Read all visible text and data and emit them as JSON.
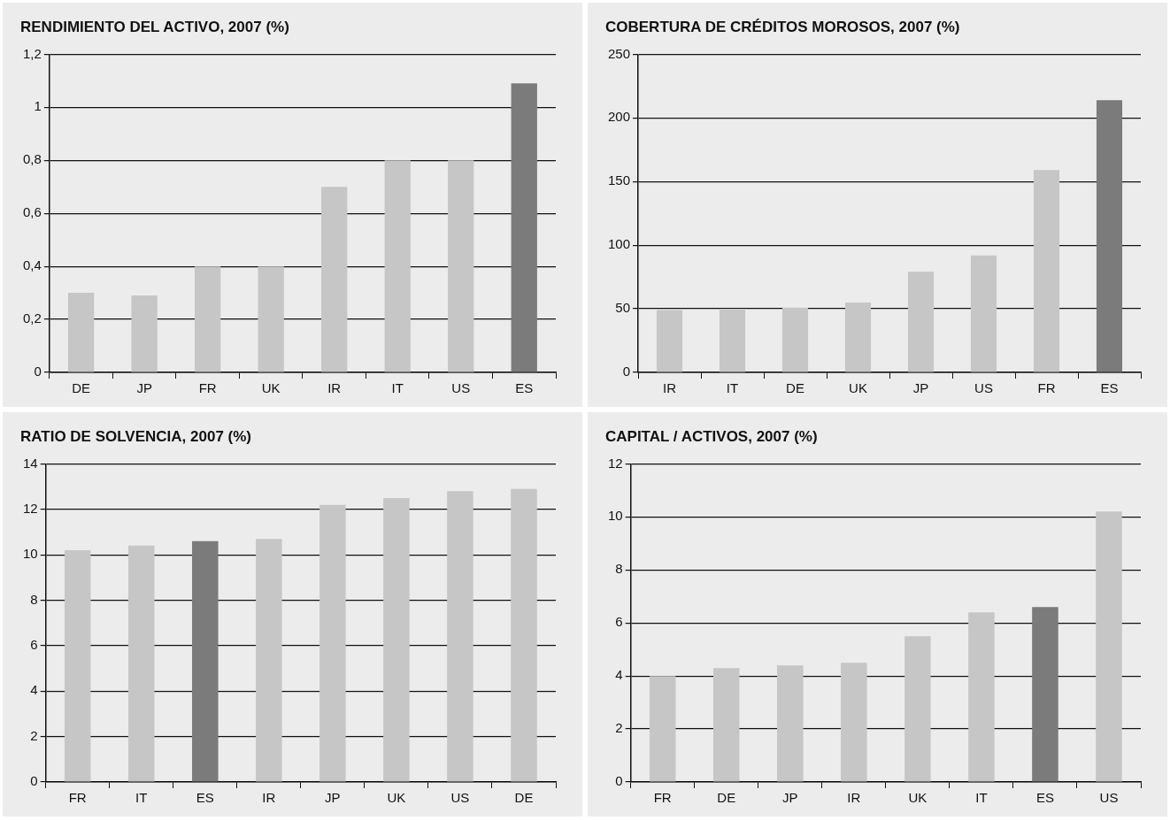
{
  "chart_data": [
    {
      "type": "bar",
      "title": "RENDIMIENTO DEL ACTIVO, 2007 (%)",
      "categories": [
        "DE",
        "JP",
        "FR",
        "UK",
        "IR",
        "IT",
        "US",
        "ES"
      ],
      "values": [
        0.3,
        0.29,
        0.4,
        0.4,
        0.7,
        0.8,
        0.8,
        1.09
      ],
      "colors": [
        "#c6c6c6",
        "#c6c6c6",
        "#c6c6c6",
        "#c6c6c6",
        "#c6c6c6",
        "#c6c6c6",
        "#c6c6c6",
        "#7b7b7b"
      ],
      "ylim": [
        0,
        1.2
      ],
      "yticks": [
        0,
        {
          "value": 0.2,
          "label": "0,2"
        },
        {
          "value": 0.4,
          "label": "0,4"
        },
        {
          "value": 0.6,
          "label": "0,6"
        },
        {
          "value": 0.8,
          "label": "0,8"
        },
        1,
        {
          "value": 1.2,
          "label": "1,2"
        }
      ],
      "grid": "y"
    },
    {
      "type": "bar",
      "title": "COBERTURA DE CRÉDITOS MOROSOS, 2007 (%)",
      "categories": [
        "IR",
        "IT",
        "DE",
        "UK",
        "JP",
        "US",
        "FR",
        "ES"
      ],
      "values": [
        49,
        50,
        51,
        55,
        79,
        92,
        159,
        214
      ],
      "colors": [
        "#c6c6c6",
        "#c6c6c6",
        "#c6c6c6",
        "#c6c6c6",
        "#c6c6c6",
        "#c6c6c6",
        "#c6c6c6",
        "#7b7b7b"
      ],
      "ylim": [
        0,
        250
      ],
      "yticks": [
        0,
        50,
        100,
        150,
        200,
        250
      ],
      "grid": "y"
    },
    {
      "type": "bar",
      "title": "RATIO DE SOLVENCIA, 2007 (%)",
      "categories": [
        "FR",
        "IT",
        "ES",
        "IR",
        "JP",
        "UK",
        "US",
        "DE"
      ],
      "values": [
        10.2,
        10.4,
        10.6,
        10.7,
        12.2,
        12.5,
        12.8,
        12.9
      ],
      "colors": [
        "#c6c6c6",
        "#c6c6c6",
        "#7b7b7b",
        "#c6c6c6",
        "#c6c6c6",
        "#c6c6c6",
        "#c6c6c6",
        "#c6c6c6"
      ],
      "ylim": [
        0,
        14
      ],
      "yticks": [
        0,
        2,
        4,
        6,
        8,
        10,
        12,
        14
      ],
      "grid": "y"
    },
    {
      "type": "bar",
      "title": "CAPITAL / ACTIVOS, 2007 (%)",
      "categories": [
        "FR",
        "DE",
        "JP",
        "IR",
        "UK",
        "IT",
        "ES",
        "US"
      ],
      "values": [
        4.0,
        4.3,
        4.4,
        4.5,
        5.5,
        6.4,
        6.6,
        10.2
      ],
      "colors": [
        "#c6c6c6",
        "#c6c6c6",
        "#c6c6c6",
        "#c6c6c6",
        "#c6c6c6",
        "#c6c6c6",
        "#7b7b7b",
        "#c6c6c6"
      ],
      "ylim": [
        0,
        12
      ],
      "yticks": [
        0,
        2,
        4,
        6,
        8,
        10,
        12
      ],
      "grid": "y"
    }
  ]
}
